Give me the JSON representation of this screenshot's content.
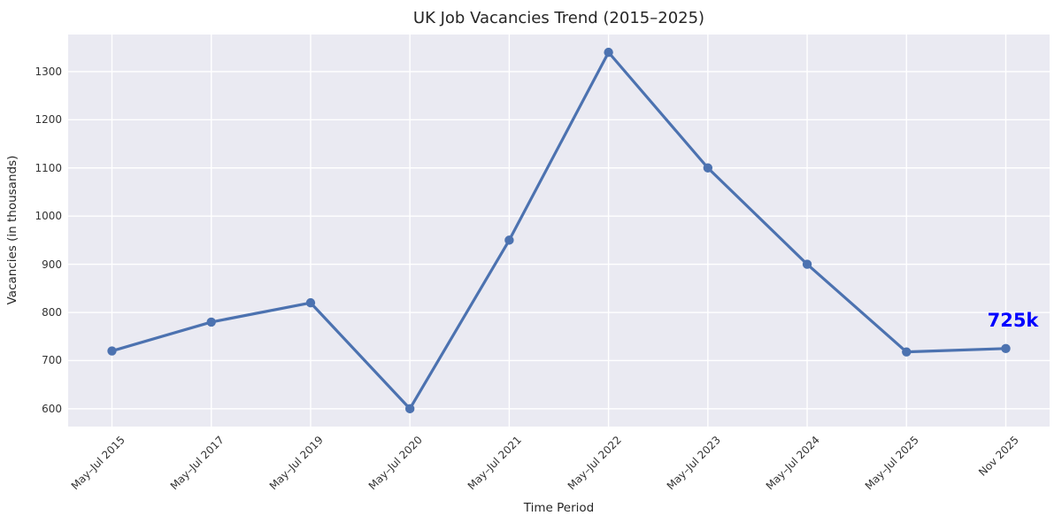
{
  "chart_data": {
    "type": "line",
    "title": "UK Job Vacancies Trend (2015–2025)",
    "xlabel": "Time Period",
    "ylabel": "Vacancies (in thousands)",
    "categories": [
      "May–Jul 2015",
      "May–Jul 2017",
      "May–Jul 2019",
      "May–Jul 2020",
      "May–Jul 2021",
      "May–Jul 2022",
      "May–Jul 2023",
      "May–Jul 2024",
      "May–Jul 2025",
      "Nov 2025"
    ],
    "values": [
      720,
      780,
      820,
      600,
      950,
      1340,
      1100,
      900,
      718,
      725
    ],
    "yticks": [
      600,
      700,
      800,
      900,
      1000,
      1100,
      1200,
      1300
    ],
    "ylim": [
      563,
      1377
    ],
    "grid": true,
    "legend_position": "none",
    "line_color": "#4c72b0",
    "marker": "circle",
    "plot_background": "#eaeaf2",
    "gridline_color": "#ffffff",
    "annotation": {
      "text": "725k",
      "color": "#0000ff",
      "target_index": 9
    }
  }
}
